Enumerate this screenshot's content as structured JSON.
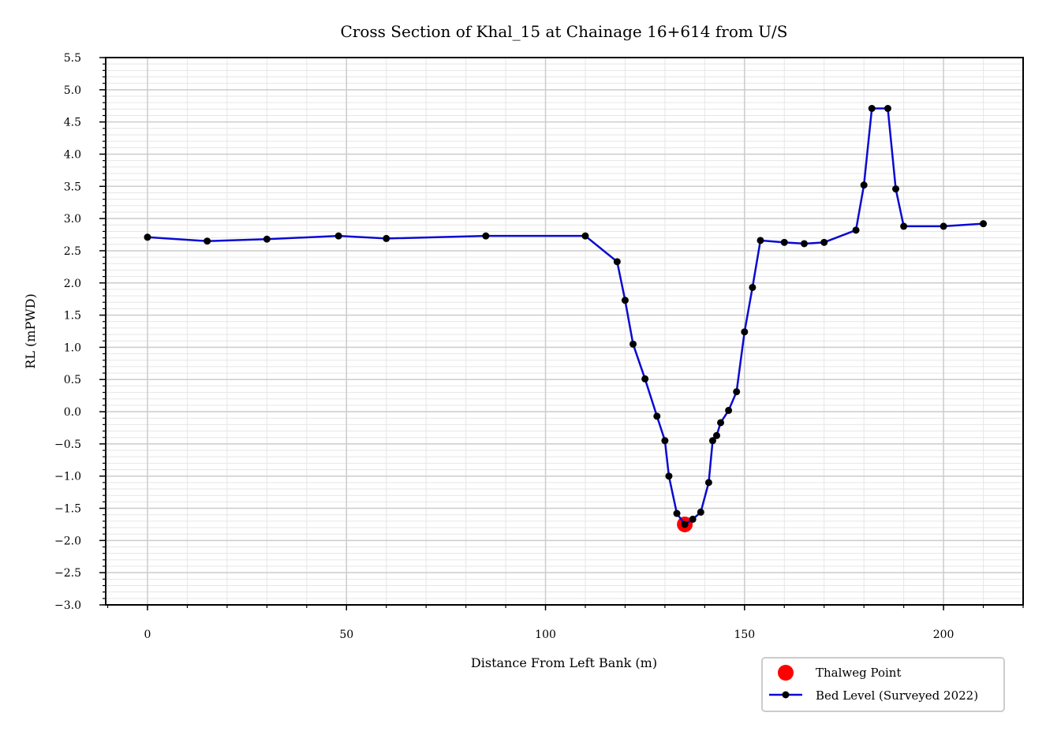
{
  "chart_data": {
    "type": "line",
    "title": "Cross Section of Khal_15 at Chainage 16+614 from U/S",
    "xlabel": "Distance From Left Bank (m)",
    "ylabel": "RL (mPWD)",
    "xlim": [
      -10.5,
      220
    ],
    "ylim": [
      -3.0,
      5.5
    ],
    "x_ticks": [
      0,
      50,
      100,
      150,
      200
    ],
    "x_tick_labels": [
      "0",
      "50",
      "100",
      "150",
      "200"
    ],
    "y_ticks": [
      -3.0,
      -2.5,
      -2.0,
      -1.5,
      -1.0,
      -0.5,
      0.0,
      0.5,
      1.0,
      1.5,
      2.0,
      2.5,
      3.0,
      3.5,
      4.0,
      4.5,
      5.0,
      5.5
    ],
    "y_tick_labels": [
      "−3.0",
      "−2.5",
      "−2.0",
      "−1.5",
      "−1.0",
      "−0.5",
      "0.0",
      "0.5",
      "1.0",
      "1.5",
      "2.0",
      "2.5",
      "3.0",
      "3.5",
      "4.0",
      "4.5",
      "5.0",
      "5.5"
    ],
    "grid": true,
    "legend_position": "bottom-right, outside plot",
    "series": [
      {
        "name": "Bed Level (Surveyed 2022)",
        "kind": "line-with-markers",
        "color": "#0a0ad2",
        "marker_color": "#000000",
        "x": [
          0,
          15,
          30,
          48,
          60,
          85,
          110,
          118,
          120,
          122,
          125,
          128,
          130,
          131,
          133,
          135,
          137,
          139,
          141,
          142,
          143,
          144,
          146,
          148,
          150,
          152,
          154,
          160,
          165,
          170,
          178,
          180,
          182,
          186,
          188,
          190,
          200,
          210
        ],
        "y": [
          2.71,
          2.65,
          2.68,
          2.73,
          2.69,
          2.73,
          2.73,
          2.33,
          1.73,
          1.05,
          0.51,
          -0.07,
          -0.45,
          -1.0,
          -1.58,
          -1.75,
          -1.67,
          -1.56,
          -1.1,
          -0.45,
          -0.37,
          -0.17,
          0.02,
          0.31,
          1.24,
          1.93,
          2.66,
          2.63,
          2.61,
          2.63,
          2.82,
          3.52,
          4.71,
          4.71,
          3.46,
          2.88,
          2.88,
          2.92
        ]
      },
      {
        "name": "Thalweg Point",
        "kind": "scatter",
        "color": "#ff0000",
        "x": [
          135
        ],
        "y": [
          -1.75
        ]
      }
    ]
  }
}
